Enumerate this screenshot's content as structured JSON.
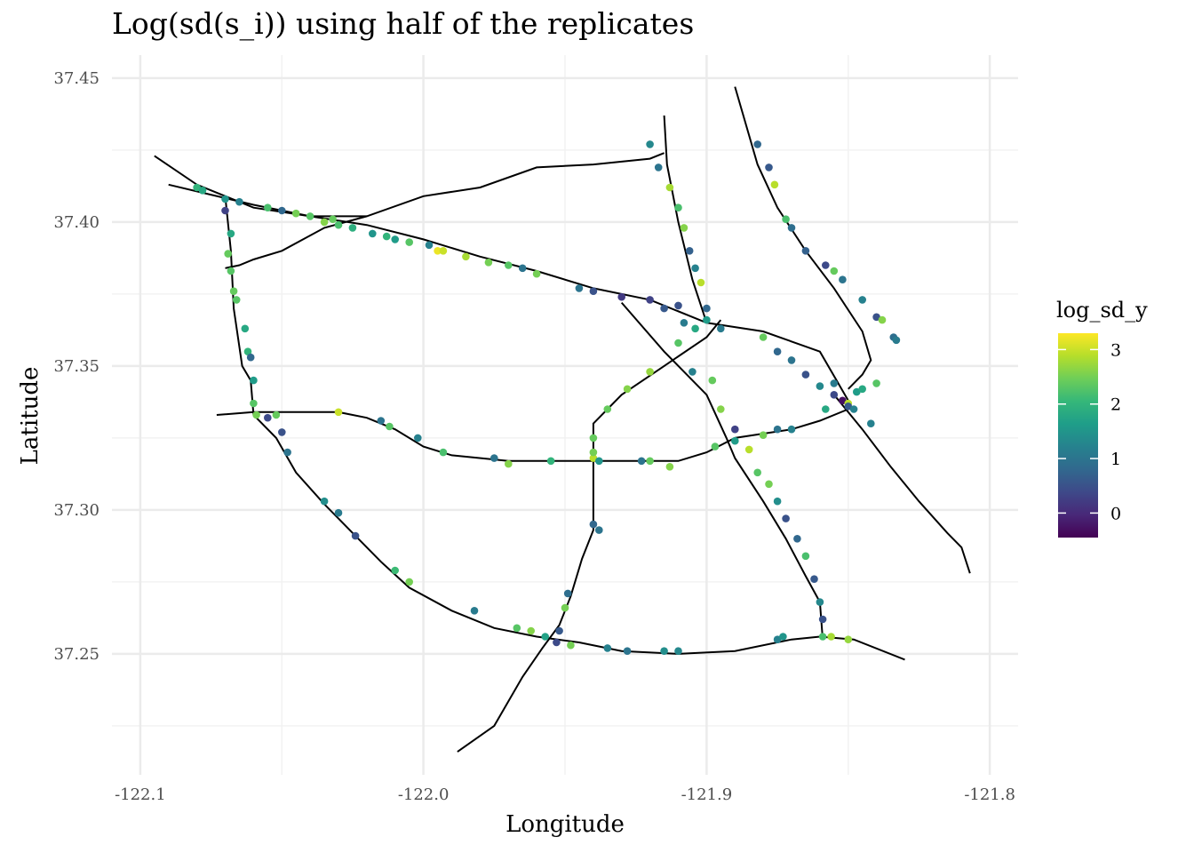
{
  "chart_data": {
    "type": "scatter",
    "title": "Log(sd(s_i)) using half of the replicates",
    "xlabel": "Longitude",
    "ylabel": "Latitude",
    "xlim": [
      -122.11,
      -121.79
    ],
    "ylim": [
      37.208,
      37.458
    ],
    "x_ticks": [
      -122.1,
      -122.0,
      -121.9,
      -121.8
    ],
    "x_tick_labels": [
      "-122.1",
      "-122.0",
      "-121.9",
      "-121.8"
    ],
    "y_ticks": [
      37.25,
      37.3,
      37.35,
      37.4,
      37.45
    ],
    "y_tick_labels": [
      "37.25",
      "37.30",
      "37.35",
      "37.40",
      "37.45"
    ],
    "grid": true,
    "legend": {
      "title": "log_sd_y",
      "position": "right",
      "min": -0.45,
      "max": 3.3,
      "ticks": [
        0,
        1,
        2,
        3
      ],
      "tick_labels": [
        "0",
        "1",
        "2",
        "3"
      ],
      "colormap": "viridis",
      "colors": [
        "#440154",
        "#482878",
        "#3e4989",
        "#31688e",
        "#26828e",
        "#1f9e89",
        "#35b779",
        "#6ece58",
        "#b5de2b",
        "#fde725"
      ]
    },
    "roads": [
      {
        "name": "",
        "x": [
          -122.095,
          -122.08,
          -122.06,
          -122.04,
          -122.02,
          -122.0,
          -121.98,
          -121.96,
          -121.94,
          -121.92,
          -121.915
        ],
        "y": [
          37.423,
          37.413,
          37.405,
          37.402,
          37.402,
          37.409,
          37.412,
          37.419,
          37.42,
          37.422,
          37.424
        ]
      },
      {
        "name": "",
        "x": [
          -122.09,
          -122.06,
          -122.04,
          -122.02,
          -122.0,
          -121.98,
          -121.96,
          -121.94,
          -121.92,
          -121.9,
          -121.88,
          -121.86,
          -121.85
        ],
        "y": [
          37.413,
          37.406,
          37.402,
          37.399,
          37.394,
          37.388,
          37.383,
          37.377,
          37.373,
          37.365,
          37.362,
          37.355,
          37.338
        ]
      },
      {
        "name": "",
        "x": [
          -122.07,
          -122.065,
          -122.06,
          -122.05,
          -122.035,
          -122.02
        ],
        "y": [
          37.384,
          37.385,
          37.387,
          37.39,
          37.398,
          37.402
        ]
      },
      {
        "name": "",
        "x": [
          -122.07,
          -122.068,
          -122.067,
          -122.064,
          -122.061,
          -122.06
        ],
        "y": [
          37.409,
          37.39,
          37.37,
          37.35,
          37.345,
          37.333
        ]
      },
      {
        "name": "",
        "x": [
          -122.073,
          -122.06,
          -122.05,
          -122.03,
          -122.02,
          -122.01,
          -122.0,
          -121.99,
          -121.97,
          -121.95,
          -121.93,
          -121.91,
          -121.9,
          -121.89,
          -121.87,
          -121.86,
          -121.85
        ],
        "y": [
          37.333,
          37.334,
          37.334,
          37.334,
          37.332,
          37.328,
          37.322,
          37.319,
          37.317,
          37.317,
          37.317,
          37.317,
          37.32,
          37.325,
          37.328,
          37.331,
          37.335
        ]
      },
      {
        "name": "",
        "x": [
          -122.059,
          -122.052,
          -122.045,
          -122.035,
          -122.025,
          -122.015,
          -122.005,
          -121.99,
          -121.975,
          -121.96,
          -121.945,
          -121.93,
          -121.91,
          -121.89,
          -121.87,
          -121.86,
          -121.848,
          -121.83
        ],
        "y": [
          37.332,
          37.325,
          37.313,
          37.302,
          37.292,
          37.282,
          37.273,
          37.265,
          37.259,
          37.256,
          37.254,
          37.251,
          37.25,
          37.251,
          37.255,
          37.256,
          37.255,
          37.248
        ]
      },
      {
        "name": "",
        "x": [
          -121.988,
          -121.975,
          -121.965,
          -121.958,
          -121.952,
          -121.948,
          -121.944,
          -121.94,
          -121.94,
          -121.94,
          -121.93,
          -121.915,
          -121.9,
          -121.895
        ],
        "y": [
          37.216,
          37.225,
          37.242,
          37.252,
          37.26,
          37.27,
          37.283,
          37.293,
          37.31,
          37.33,
          37.34,
          37.35,
          37.36,
          37.366
        ]
      },
      {
        "name": "",
        "x": [
          -121.915,
          -121.914,
          -121.91,
          -121.905,
          -121.9
        ],
        "y": [
          37.437,
          37.42,
          37.4,
          37.38,
          37.365
        ]
      },
      {
        "name": "",
        "x": [
          -121.93,
          -121.915,
          -121.9,
          -121.893,
          -121.89,
          -121.88,
          -121.872,
          -121.865,
          -121.86,
          -121.859
        ],
        "y": [
          37.372,
          37.355,
          37.34,
          37.325,
          37.318,
          37.303,
          37.29,
          37.277,
          37.268,
          37.255
        ]
      },
      {
        "name": "",
        "x": [
          -121.89,
          -121.882,
          -121.875,
          -121.865,
          -121.855,
          -121.845,
          -121.842,
          -121.845,
          -121.85
        ],
        "y": [
          37.447,
          37.42,
          37.405,
          37.39,
          37.377,
          37.362,
          37.352,
          37.347,
          37.342
        ]
      },
      {
        "name": "",
        "x": [
          -121.855,
          -121.845,
          -121.835,
          -121.825,
          -121.815,
          -121.81,
          -121.807
        ],
        "y": [
          37.34,
          37.328,
          37.315,
          37.303,
          37.292,
          37.287,
          37.278
        ]
      }
    ],
    "points": [
      {
        "x": -122.08,
        "y": 37.412,
        "v": 2.0
      },
      {
        "x": -122.078,
        "y": 37.411,
        "v": 1.8
      },
      {
        "x": -122.07,
        "y": 37.408,
        "v": 1.5
      },
      {
        "x": -122.065,
        "y": 37.407,
        "v": 1.2
      },
      {
        "x": -122.055,
        "y": 37.405,
        "v": 2.2
      },
      {
        "x": -122.05,
        "y": 37.404,
        "v": 0.8
      },
      {
        "x": -122.045,
        "y": 37.403,
        "v": 2.5
      },
      {
        "x": -122.04,
        "y": 37.402,
        "v": 2.3
      },
      {
        "x": -122.035,
        "y": 37.4,
        "v": 2.6
      },
      {
        "x": -122.032,
        "y": 37.401,
        "v": 2.4
      },
      {
        "x": -122.03,
        "y": 37.399,
        "v": 2.2
      },
      {
        "x": -122.025,
        "y": 37.398,
        "v": 1.9
      },
      {
        "x": -122.018,
        "y": 37.396,
        "v": 1.5
      },
      {
        "x": -122.013,
        "y": 37.395,
        "v": 2.0
      },
      {
        "x": -122.01,
        "y": 37.394,
        "v": 1.6
      },
      {
        "x": -122.005,
        "y": 37.393,
        "v": 2.3
      },
      {
        "x": -121.998,
        "y": 37.392,
        "v": 1.2
      },
      {
        "x": -121.995,
        "y": 37.39,
        "v": 3.2
      },
      {
        "x": -121.993,
        "y": 37.39,
        "v": 3.0
      },
      {
        "x": -121.985,
        "y": 37.388,
        "v": 2.8
      },
      {
        "x": -121.977,
        "y": 37.386,
        "v": 2.5
      },
      {
        "x": -121.97,
        "y": 37.385,
        "v": 2.3
      },
      {
        "x": -121.965,
        "y": 37.384,
        "v": 1.0
      },
      {
        "x": -121.96,
        "y": 37.382,
        "v": 2.5
      },
      {
        "x": -121.945,
        "y": 37.377,
        "v": 1.0
      },
      {
        "x": -121.94,
        "y": 37.376,
        "v": 0.5
      },
      {
        "x": -121.93,
        "y": 37.374,
        "v": 0.2
      },
      {
        "x": -121.92,
        "y": 37.373,
        "v": 0.3
      },
      {
        "x": -121.91,
        "y": 37.371,
        "v": 0.5
      },
      {
        "x": -122.068,
        "y": 37.396,
        "v": 1.8
      },
      {
        "x": -122.069,
        "y": 37.389,
        "v": 2.4
      },
      {
        "x": -122.068,
        "y": 37.383,
        "v": 2.3
      },
      {
        "x": -122.067,
        "y": 37.376,
        "v": 2.4
      },
      {
        "x": -122.066,
        "y": 37.373,
        "v": 2.3
      },
      {
        "x": -122.063,
        "y": 37.363,
        "v": 1.8
      },
      {
        "x": -122.062,
        "y": 37.355,
        "v": 2.0
      },
      {
        "x": -122.061,
        "y": 37.353,
        "v": 0.8
      },
      {
        "x": -122.06,
        "y": 37.345,
        "v": 1.6
      },
      {
        "x": -122.06,
        "y": 37.337,
        "v": 2.3
      },
      {
        "x": -122.059,
        "y": 37.333,
        "v": 2.5
      },
      {
        "x": -122.07,
        "y": 37.404,
        "v": 0.3
      },
      {
        "x": -122.055,
        "y": 37.332,
        "v": 0.4
      },
      {
        "x": -122.052,
        "y": 37.333,
        "v": 2.4
      },
      {
        "x": -122.03,
        "y": 37.334,
        "v": 3.0
      },
      {
        "x": -122.015,
        "y": 37.331,
        "v": 1.0
      },
      {
        "x": -122.012,
        "y": 37.329,
        "v": 2.3
      },
      {
        "x": -122.002,
        "y": 37.325,
        "v": 1.2
      },
      {
        "x": -121.993,
        "y": 37.32,
        "v": 2.2
      },
      {
        "x": -121.975,
        "y": 37.318,
        "v": 1.0
      },
      {
        "x": -121.97,
        "y": 37.316,
        "v": 2.6
      },
      {
        "x": -121.955,
        "y": 37.317,
        "v": 2.0
      },
      {
        "x": -121.94,
        "y": 37.318,
        "v": 2.9
      },
      {
        "x": -121.938,
        "y": 37.317,
        "v": 1.5
      },
      {
        "x": -121.923,
        "y": 37.317,
        "v": 1.0
      },
      {
        "x": -121.92,
        "y": 37.317,
        "v": 2.4
      },
      {
        "x": -121.913,
        "y": 37.315,
        "v": 2.6
      },
      {
        "x": -121.897,
        "y": 37.322,
        "v": 2.3
      },
      {
        "x": -121.89,
        "y": 37.324,
        "v": 1.6
      },
      {
        "x": -121.88,
        "y": 37.326,
        "v": 2.5
      },
      {
        "x": -121.875,
        "y": 37.328,
        "v": 1.0
      },
      {
        "x": -121.87,
        "y": 37.328,
        "v": 1.2
      },
      {
        "x": -121.858,
        "y": 37.335,
        "v": 1.8
      },
      {
        "x": -122.05,
        "y": 37.327,
        "v": 0.5
      },
      {
        "x": -122.048,
        "y": 37.32,
        "v": 1.0
      },
      {
        "x": -122.035,
        "y": 37.303,
        "v": 1.4
      },
      {
        "x": -122.03,
        "y": 37.299,
        "v": 1.1
      },
      {
        "x": -122.024,
        "y": 37.291,
        "v": 0.5
      },
      {
        "x": -122.01,
        "y": 37.279,
        "v": 2.1
      },
      {
        "x": -122.005,
        "y": 37.275,
        "v": 2.5
      },
      {
        "x": -121.982,
        "y": 37.265,
        "v": 1.1
      },
      {
        "x": -121.967,
        "y": 37.259,
        "v": 2.3
      },
      {
        "x": -121.962,
        "y": 37.258,
        "v": 2.6
      },
      {
        "x": -121.957,
        "y": 37.256,
        "v": 1.7
      },
      {
        "x": -121.948,
        "y": 37.253,
        "v": 2.5
      },
      {
        "x": -121.935,
        "y": 37.252,
        "v": 1.2
      },
      {
        "x": -121.928,
        "y": 37.251,
        "v": 1.0
      },
      {
        "x": -121.915,
        "y": 37.251,
        "v": 1.4
      },
      {
        "x": -121.91,
        "y": 37.251,
        "v": 1.3
      },
      {
        "x": -121.875,
        "y": 37.255,
        "v": 1.2
      },
      {
        "x": -121.873,
        "y": 37.256,
        "v": 1.5
      },
      {
        "x": -121.859,
        "y": 37.256,
        "v": 2.2
      },
      {
        "x": -121.856,
        "y": 37.256,
        "v": 2.8
      },
      {
        "x": -121.85,
        "y": 37.255,
        "v": 2.7
      },
      {
        "x": -121.953,
        "y": 37.254,
        "v": 0.4
      },
      {
        "x": -121.952,
        "y": 37.258,
        "v": 0.6
      },
      {
        "x": -121.95,
        "y": 37.266,
        "v": 2.5
      },
      {
        "x": -121.949,
        "y": 37.271,
        "v": 0.9
      },
      {
        "x": -121.94,
        "y": 37.295,
        "v": 0.8
      },
      {
        "x": -121.938,
        "y": 37.293,
        "v": 1.0
      },
      {
        "x": -121.94,
        "y": 37.325,
        "v": 2.4
      },
      {
        "x": -121.94,
        "y": 37.32,
        "v": 2.5
      },
      {
        "x": -121.935,
        "y": 37.335,
        "v": 2.4
      },
      {
        "x": -121.928,
        "y": 37.342,
        "v": 2.6
      },
      {
        "x": -121.92,
        "y": 37.348,
        "v": 2.7
      },
      {
        "x": -121.91,
        "y": 37.358,
        "v": 2.3
      },
      {
        "x": -121.904,
        "y": 37.363,
        "v": 1.8
      },
      {
        "x": -121.895,
        "y": 37.363,
        "v": 1.1
      },
      {
        "x": -121.92,
        "y": 37.427,
        "v": 1.3
      },
      {
        "x": -121.917,
        "y": 37.419,
        "v": 1.0
      },
      {
        "x": -121.913,
        "y": 37.412,
        "v": 2.8
      },
      {
        "x": -121.91,
        "y": 37.405,
        "v": 2.2
      },
      {
        "x": -121.908,
        "y": 37.398,
        "v": 2.6
      },
      {
        "x": -121.906,
        "y": 37.39,
        "v": 0.7
      },
      {
        "x": -121.904,
        "y": 37.384,
        "v": 1.2
      },
      {
        "x": -121.902,
        "y": 37.379,
        "v": 2.9
      },
      {
        "x": -121.9,
        "y": 37.37,
        "v": 0.8
      },
      {
        "x": -121.9,
        "y": 37.366,
        "v": 1.6
      },
      {
        "x": -121.915,
        "y": 37.37,
        "v": 0.6
      },
      {
        "x": -121.908,
        "y": 37.365,
        "v": 1.1
      },
      {
        "x": -121.905,
        "y": 37.348,
        "v": 1.2
      },
      {
        "x": -121.898,
        "y": 37.345,
        "v": 2.4
      },
      {
        "x": -121.895,
        "y": 37.335,
        "v": 2.6
      },
      {
        "x": -121.89,
        "y": 37.328,
        "v": 0.3
      },
      {
        "x": -121.885,
        "y": 37.321,
        "v": 2.9
      },
      {
        "x": -121.882,
        "y": 37.313,
        "v": 2.3
      },
      {
        "x": -121.878,
        "y": 37.309,
        "v": 2.5
      },
      {
        "x": -121.875,
        "y": 37.303,
        "v": 1.4
      },
      {
        "x": -121.872,
        "y": 37.297,
        "v": 0.5
      },
      {
        "x": -121.868,
        "y": 37.29,
        "v": 0.8
      },
      {
        "x": -121.865,
        "y": 37.284,
        "v": 2.2
      },
      {
        "x": -121.862,
        "y": 37.276,
        "v": 0.6
      },
      {
        "x": -121.86,
        "y": 37.268,
        "v": 1.3
      },
      {
        "x": -121.859,
        "y": 37.262,
        "v": 0.5
      },
      {
        "x": -121.882,
        "y": 37.427,
        "v": 0.8
      },
      {
        "x": -121.878,
        "y": 37.419,
        "v": 0.6
      },
      {
        "x": -121.876,
        "y": 37.413,
        "v": 2.9
      },
      {
        "x": -121.872,
        "y": 37.401,
        "v": 2.2
      },
      {
        "x": -121.87,
        "y": 37.398,
        "v": 0.9
      },
      {
        "x": -121.865,
        "y": 37.39,
        "v": 0.7
      },
      {
        "x": -121.858,
        "y": 37.385,
        "v": 0.4
      },
      {
        "x": -121.855,
        "y": 37.383,
        "v": 2.4
      },
      {
        "x": -121.852,
        "y": 37.38,
        "v": 1.0
      },
      {
        "x": -121.845,
        "y": 37.373,
        "v": 1.2
      },
      {
        "x": -121.84,
        "y": 37.367,
        "v": 0.5
      },
      {
        "x": -121.838,
        "y": 37.366,
        "v": 2.6
      },
      {
        "x": -121.834,
        "y": 37.36,
        "v": 0.9
      },
      {
        "x": -121.833,
        "y": 37.359,
        "v": 1.1
      },
      {
        "x": -121.88,
        "y": 37.36,
        "v": 2.4
      },
      {
        "x": -121.875,
        "y": 37.355,
        "v": 0.8
      },
      {
        "x": -121.87,
        "y": 37.352,
        "v": 1.0
      },
      {
        "x": -121.865,
        "y": 37.347,
        "v": 0.5
      },
      {
        "x": -121.86,
        "y": 37.343,
        "v": 1.3
      },
      {
        "x": -121.855,
        "y": 37.34,
        "v": 0.4
      },
      {
        "x": -121.852,
        "y": 37.338,
        "v": -0.3
      },
      {
        "x": -121.85,
        "y": 37.337,
        "v": 2.9
      },
      {
        "x": -121.847,
        "y": 37.341,
        "v": 1.6
      },
      {
        "x": -121.845,
        "y": 37.342,
        "v": 1.8
      },
      {
        "x": -121.84,
        "y": 37.344,
        "v": 2.3
      },
      {
        "x": -121.842,
        "y": 37.33,
        "v": 1.2
      },
      {
        "x": -121.85,
        "y": 37.336,
        "v": 0.6
      },
      {
        "x": -121.848,
        "y": 37.335,
        "v": 1.2
      },
      {
        "x": -121.855,
        "y": 37.344,
        "v": 1.1
      }
    ]
  }
}
